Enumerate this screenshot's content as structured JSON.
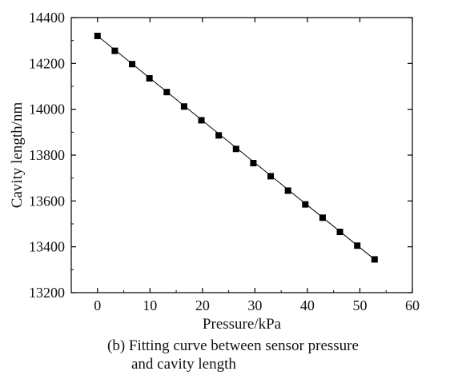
{
  "chart_data": {
    "type": "scatter",
    "title": "",
    "xlabel": "Pressure/kPa",
    "ylabel": "Cavity length/nm",
    "xlim": [
      -5,
      60
    ],
    "ylim": [
      13200,
      14400
    ],
    "x_ticks": [
      0,
      10,
      20,
      30,
      40,
      50,
      60
    ],
    "y_ticks": [
      13200,
      13400,
      13600,
      13800,
      14000,
      14200,
      14400
    ],
    "x_tick_labels": [
      "0",
      "10",
      "20",
      "30",
      "40",
      "50",
      "60"
    ],
    "y_tick_labels": [
      "13200",
      "13400",
      "13600",
      "13800",
      "14000",
      "14200",
      "14400"
    ],
    "grid": false,
    "legend": "none",
    "series": [
      {
        "marker": "square",
        "color": "#000000",
        "x": [
          0,
          3.3,
          6.6,
          9.9,
          13.2,
          16.5,
          19.8,
          23.1,
          26.4,
          29.7,
          33.0,
          36.3,
          39.6,
          42.9,
          46.2,
          49.5,
          52.8
        ],
        "y": [
          14320,
          14255,
          14197,
          14135,
          14075,
          14012,
          13952,
          13886,
          13827,
          13765,
          13708,
          13645,
          13585,
          13527,
          13465,
          13405,
          13345
        ]
      }
    ],
    "fit_line": {
      "color": "#000000",
      "x": [
        0,
        52.8
      ],
      "y": [
        14320,
        13345
      ]
    },
    "caption_line1": "(b) Fitting curve between sensor pressure",
    "caption_line2": "and cavity length"
  }
}
